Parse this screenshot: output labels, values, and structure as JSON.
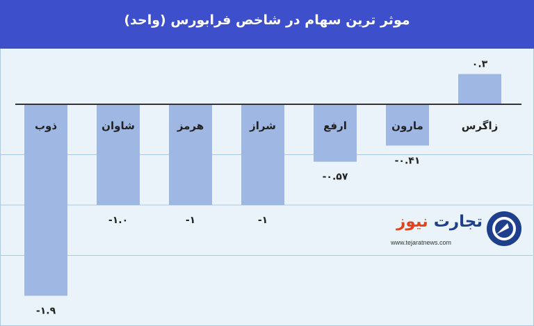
{
  "header": {
    "title": "موثر ترین سهام در شاخص فرابورس (واحد)"
  },
  "colors": {
    "header_bg": "#3e4fcc",
    "bar": "#9eb7e3",
    "axis": "#333333",
    "grid": "#a9c8e6",
    "background": "#e9f3f9"
  },
  "logo": {
    "word1": "تجارت",
    "word2": "نیوز",
    "url": "www.tejaratnews.com",
    "icon": "tejarat-news-logo-icon"
  },
  "chart_data": {
    "type": "bar",
    "title": "موثر ترین سهام در شاخص فرابورس (واحد)",
    "categories": [
      "زاگرس",
      "مارون",
      "ارفع",
      "شراز",
      "هرمز",
      "شاوان",
      "ذوب"
    ],
    "values": [
      0.3,
      -0.41,
      -0.57,
      -1,
      -1,
      -1.0,
      -1.9
    ],
    "value_labels": [
      "۰.۳",
      "-۰.۴۱",
      "-۰.۵۷",
      "-۱",
      "-۱",
      "-۱.۰",
      "-۱.۹"
    ],
    "ylim": [
      -2.0,
      0.5
    ],
    "grid": true,
    "legend": "none"
  }
}
